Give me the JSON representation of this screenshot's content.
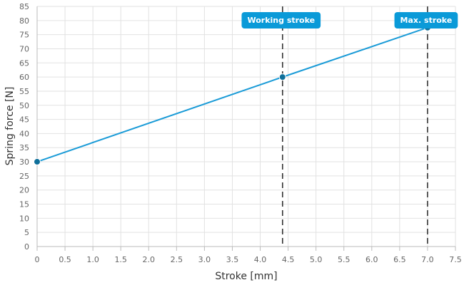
{
  "chart_data": {
    "type": "line",
    "title": "",
    "xlabel": "Stroke [mm]",
    "ylabel": "Spring force [N]",
    "xlim": [
      0,
      7.5
    ],
    "ylim": [
      0,
      85
    ],
    "x_ticks": [
      0,
      0.5,
      1.0,
      1.5,
      2.0,
      2.5,
      3.0,
      3.5,
      4.0,
      4.5,
      5.0,
      5.5,
      6.0,
      6.5,
      7.0,
      7.5
    ],
    "x_tick_labels": [
      "0",
      "0.5",
      "1.0",
      "1.5",
      "2.0",
      "2.5",
      "3.0",
      "3.5",
      "4.0",
      "4.5",
      "5.0",
      "5.5",
      "6.0",
      "6.5",
      "7.0",
      "7.5"
    ],
    "y_ticks": [
      0,
      5,
      10,
      15,
      20,
      25,
      30,
      35,
      40,
      45,
      50,
      55,
      60,
      65,
      70,
      75,
      80,
      85
    ],
    "y_tick_labels": [
      "0",
      "5",
      "10",
      "15",
      "20",
      "25",
      "30",
      "35",
      "40",
      "45",
      "50",
      "55",
      "60",
      "65",
      "70",
      "75",
      "80",
      "85"
    ],
    "grid": true,
    "series": [
      {
        "x": [
          0,
          4.4,
          7.0
        ],
        "y": [
          30,
          60,
          77.5
        ],
        "color": "#1a9bd7"
      }
    ],
    "markers": [
      {
        "x": 4.4,
        "label": "Working stroke"
      },
      {
        "x": 7.0,
        "label": "Max. stroke"
      }
    ],
    "colors": {
      "line": "#1a9bd7",
      "point": "#0f6f9a",
      "callout": "#0a9ad8",
      "grid": "#e2e2e2",
      "marker_line": "#333333"
    }
  }
}
